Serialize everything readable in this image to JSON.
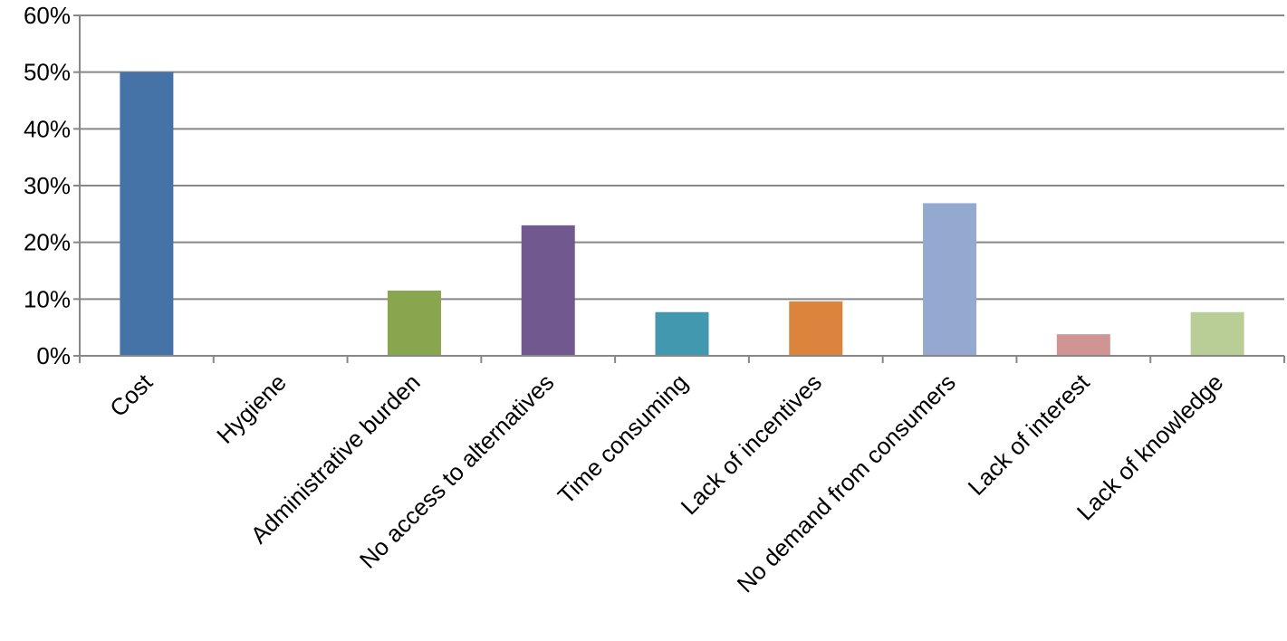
{
  "chart_data": {
    "type": "bar",
    "title": "",
    "xlabel": "",
    "ylabel": "",
    "categories": [
      "Cost",
      "Hygiene",
      "Administrative burden",
      "No access to alternatives",
      "Time consuming",
      "Lack of incentives",
      "No demand from consumers",
      "Lack of interest",
      "Lack of knowledge"
    ],
    "values": [
      50,
      0,
      11.5,
      23,
      7.7,
      9.6,
      26.9,
      3.8,
      7.7
    ],
    "ylim": [
      0,
      60
    ],
    "yticks": [
      0,
      10,
      20,
      30,
      40,
      50,
      60
    ],
    "ytick_labels": [
      "0%",
      "10%",
      "20%",
      "30%",
      "40%",
      "50%",
      "60%"
    ],
    "grid": true,
    "legend": "none",
    "colors": [
      "#4572a7",
      "#aa4643",
      "#89a54e",
      "#71588f",
      "#4198af",
      "#db843d",
      "#93a9cf",
      "#d09493",
      "#b9cd96"
    ],
    "axis_color": "#878787"
  }
}
